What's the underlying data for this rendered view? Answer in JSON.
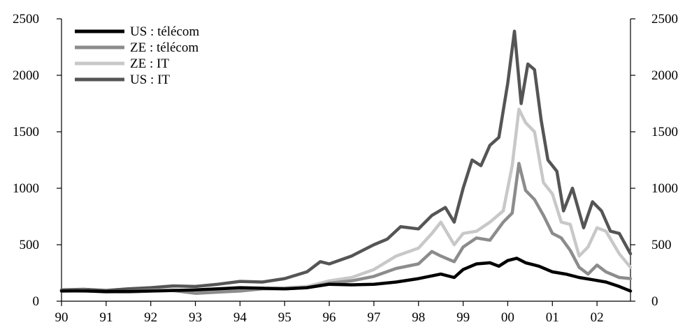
{
  "chart_data": {
    "type": "line",
    "title": "",
    "xlabel": "",
    "ylabel": "",
    "xlim": [
      1990,
      2002.75
    ],
    "ylim": [
      0,
      2500
    ],
    "x_tick_values": [
      1990,
      1991,
      1992,
      1993,
      1994,
      1995,
      1996,
      1997,
      1998,
      1999,
      2000,
      2001,
      2002
    ],
    "x_tick_labels": [
      "90",
      "91",
      "92",
      "93",
      "94",
      "95",
      "96",
      "97",
      "98",
      "99",
      "00",
      "01",
      "02"
    ],
    "y_ticks": [
      0,
      500,
      1000,
      1500,
      2000,
      2500
    ],
    "grid": false,
    "legend_position": "top-left",
    "series": [
      {
        "name": "US : IT",
        "color": "#555555",
        "x": [
          1990.0,
          1990.5,
          1991.0,
          1991.5,
          1992.0,
          1992.5,
          1993.0,
          1993.5,
          1994.0,
          1994.5,
          1995.0,
          1995.5,
          1995.8,
          1996.0,
          1996.5,
          1997.0,
          1997.3,
          1997.6,
          1998.0,
          1998.3,
          1998.6,
          1998.8,
          1999.0,
          1999.2,
          1999.4,
          1999.6,
          1999.8,
          2000.0,
          2000.15,
          2000.3,
          2000.45,
          2000.6,
          2000.75,
          2000.9,
          2001.1,
          2001.25,
          2001.45,
          2001.7,
          2001.9,
          2002.1,
          2002.3,
          2002.5,
          2002.75
        ],
        "y": [
          100,
          105,
          95,
          110,
          120,
          135,
          130,
          150,
          175,
          170,
          200,
          260,
          350,
          330,
          400,
          500,
          550,
          660,
          640,
          760,
          830,
          700,
          1000,
          1250,
          1200,
          1380,
          1450,
          1930,
          2390,
          1750,
          2100,
          2050,
          1600,
          1250,
          1150,
          800,
          1000,
          650,
          880,
          800,
          620,
          600,
          420
        ]
      },
      {
        "name": "ZE : IT",
        "color": "#c8c8c8",
        "x": [
          1990.0,
          1990.5,
          1991.0,
          1991.5,
          1992.0,
          1992.5,
          1993.0,
          1993.5,
          1994.0,
          1994.5,
          1995.0,
          1995.5,
          1996.0,
          1996.5,
          1997.0,
          1997.5,
          1998.0,
          1998.3,
          1998.5,
          1998.8,
          1999.0,
          1999.3,
          1999.6,
          1999.9,
          2000.1,
          2000.25,
          2000.4,
          2000.6,
          2000.8,
          2001.0,
          2001.2,
          2001.4,
          2001.6,
          2001.8,
          2002.0,
          2002.2,
          2002.5,
          2002.75
        ],
        "y": [
          90,
          95,
          80,
          90,
          95,
          100,
          75,
          85,
          95,
          110,
          120,
          130,
          180,
          210,
          280,
          400,
          470,
          600,
          700,
          500,
          600,
          620,
          700,
          800,
          1200,
          1700,
          1580,
          1500,
          1050,
          950,
          700,
          680,
          400,
          480,
          650,
          620,
          420,
          300
        ]
      },
      {
        "name": "ZE : télécom",
        "color": "#8c8c8c",
        "x": [
          1990.0,
          1990.5,
          1991.0,
          1991.5,
          1992.0,
          1992.5,
          1993.0,
          1993.5,
          1994.0,
          1994.5,
          1995.0,
          1995.5,
          1996.0,
          1996.5,
          1997.0,
          1997.5,
          1998.0,
          1998.3,
          1998.5,
          1998.8,
          1999.0,
          1999.3,
          1999.6,
          1999.9,
          2000.1,
          2000.25,
          2000.4,
          2000.6,
          2000.8,
          2001.0,
          2001.2,
          2001.4,
          2001.6,
          2001.8,
          2002.0,
          2002.2,
          2002.5,
          2002.75
        ],
        "y": [
          95,
          90,
          85,
          80,
          90,
          95,
          70,
          80,
          90,
          110,
          110,
          120,
          160,
          180,
          220,
          290,
          330,
          440,
          400,
          350,
          480,
          560,
          540,
          700,
          780,
          1220,
          980,
          900,
          760,
          600,
          560,
          450,
          300,
          240,
          320,
          260,
          210,
          200
        ]
      },
      {
        "name": "US : télécom",
        "color": "#000000",
        "x": [
          1990.0,
          1990.5,
          1991.0,
          1991.5,
          1992.0,
          1992.5,
          1993.0,
          1993.5,
          1994.0,
          1994.5,
          1995.0,
          1995.5,
          1996.0,
          1996.5,
          1997.0,
          1997.5,
          1998.0,
          1998.5,
          1998.8,
          1999.0,
          1999.3,
          1999.6,
          1999.8,
          2000.0,
          2000.2,
          2000.4,
          2000.7,
          2001.0,
          2001.3,
          2001.6,
          2001.9,
          2002.2,
          2002.5,
          2002.75
        ],
        "y": [
          90,
          92,
          85,
          88,
          90,
          95,
          100,
          110,
          120,
          115,
          110,
          120,
          150,
          145,
          150,
          170,
          200,
          240,
          210,
          280,
          330,
          340,
          310,
          360,
          380,
          340,
          310,
          260,
          240,
          210,
          190,
          170,
          130,
          90
        ]
      }
    ],
    "legend": [
      {
        "label": "US : télécom",
        "color": "#000000"
      },
      {
        "label": "ZE : télécom",
        "color": "#8c8c8c"
      },
      {
        "label": "ZE : IT",
        "color": "#c8c8c8"
      },
      {
        "label": "US : IT",
        "color": "#555555"
      }
    ]
  }
}
